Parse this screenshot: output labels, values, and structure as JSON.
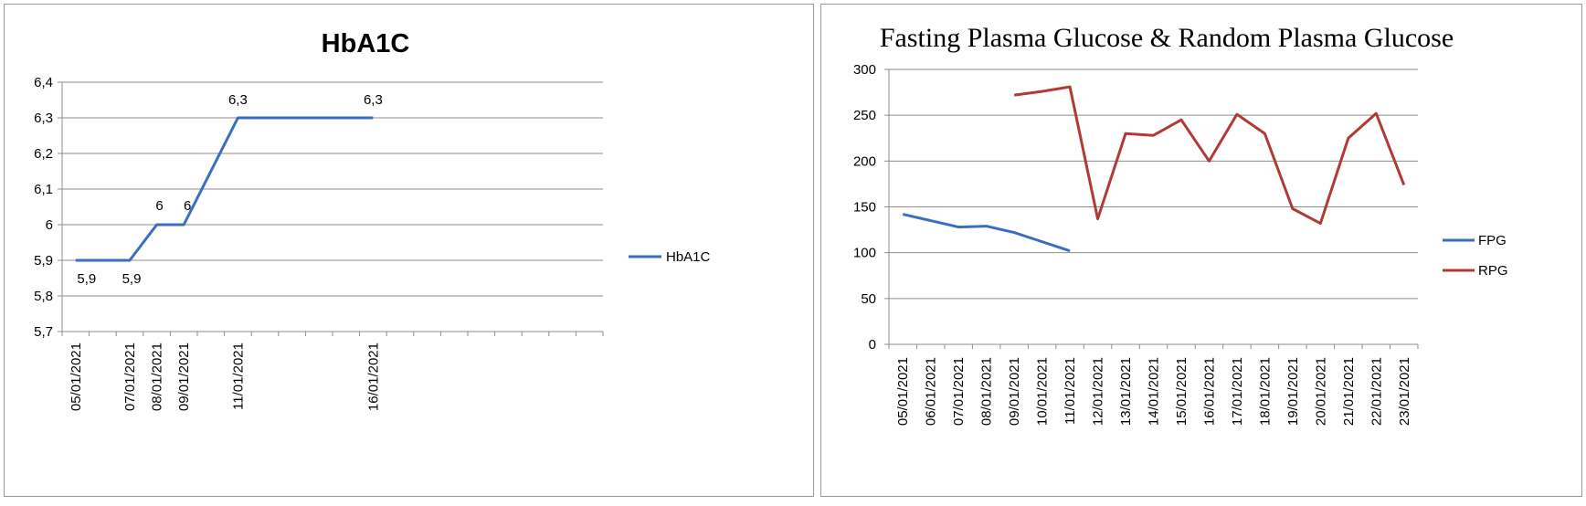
{
  "chart_data": [
    {
      "type": "line",
      "title": "HbA1C",
      "categories": [
        "05/01/2021",
        "",
        "07/01/2021",
        "08/01/2021",
        "09/01/2021",
        "",
        "11/01/2021",
        "",
        "",
        "",
        "",
        "16/01/2021",
        "",
        "",
        "",
        "",
        "",
        "",
        "",
        ""
      ],
      "y_ticks": [
        "5,7",
        "5,8",
        "5,9",
        "6",
        "6,1",
        "6,2",
        "6,3",
        "6,4"
      ],
      "ylim": [
        5.7,
        6.4
      ],
      "grid": true,
      "legend_position": "right",
      "series": [
        {
          "name": "HbA1C",
          "color": "#3a6fbd",
          "points": [
            {
              "x": "05/01/2021",
              "y": 5.9,
              "label": "5,9"
            },
            {
              "x": "07/01/2021",
              "y": 5.9,
              "label": "5,9"
            },
            {
              "x": "08/01/2021",
              "y": 6.0,
              "label": "6"
            },
            {
              "x": "09/01/2021",
              "y": 6.0,
              "label": "6"
            },
            {
              "x": "11/01/2021",
              "y": 6.3,
              "label": "6,3"
            },
            {
              "x": "16/01/2021",
              "y": 6.3,
              "label": "6,3"
            }
          ]
        }
      ]
    },
    {
      "type": "line",
      "title": "Fasting Plasma Glucose & Random Plasma Glucose",
      "categories": [
        "05/01/2021",
        "06/01/2021",
        "07/01/2021",
        "08/01/2021",
        "09/01/2021",
        "10/01/2021",
        "11/01/2021",
        "12/01/2021",
        "13/01/2021",
        "14/01/2021",
        "15/01/2021",
        "16/01/2021",
        "17/01/2021",
        "18/01/2021",
        "19/01/2021",
        "20/01/2021",
        "21/01/2021",
        "22/01/2021",
        "23/01/2021"
      ],
      "y_ticks": [
        "0",
        "50",
        "100",
        "150",
        "200",
        "250",
        "300"
      ],
      "ylim": [
        0,
        300
      ],
      "grid": true,
      "legend_position": "right",
      "series": [
        {
          "name": "FPG",
          "color": "#3a6fbd",
          "values": [
            142,
            135,
            128,
            129,
            122,
            112,
            102,
            null,
            null,
            null,
            null,
            null,
            null,
            null,
            null,
            null,
            null,
            null,
            null
          ]
        },
        {
          "name": "RPG",
          "color": "#b03a36",
          "values": [
            null,
            null,
            null,
            null,
            272,
            276,
            281,
            137,
            230,
            228,
            245,
            200,
            251,
            230,
            148,
            132,
            225,
            252,
            174
          ]
        }
      ]
    }
  ]
}
